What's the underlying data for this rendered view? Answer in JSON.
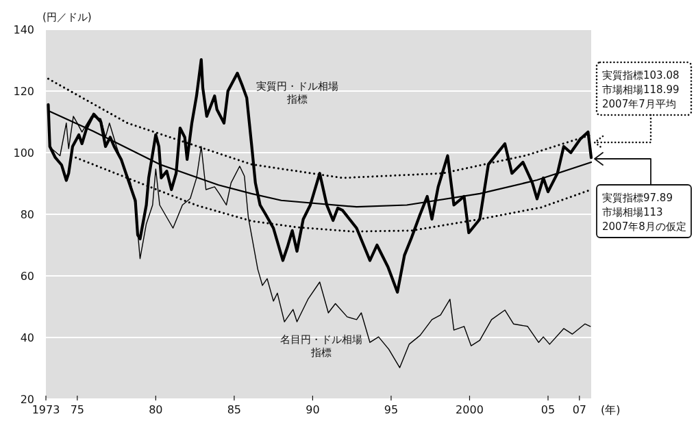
{
  "chart_data": {
    "type": "line",
    "xlabel": "(年)",
    "ylabel": "(円／ドル)",
    "xlim": [
      1973,
      2007.75
    ],
    "ylim": [
      20,
      140
    ],
    "xticks": [
      {
        "value": 1973,
        "label": "1973"
      },
      {
        "value": 1975,
        "label": "75"
      },
      {
        "value": 1980,
        "label": "80"
      },
      {
        "value": 1985,
        "label": "85"
      },
      {
        "value": 1990,
        "label": "90"
      },
      {
        "value": 1995,
        "label": "95"
      },
      2000,
      {
        "value": 2005,
        "label": "05"
      },
      {
        "value": 2007,
        "label": "07"
      }
    ],
    "yticks": [
      20,
      40,
      60,
      80,
      100,
      120,
      140
    ],
    "grid": "y",
    "series": [
      {
        "name": "実質円・ドル相場指標",
        "color": "#000000",
        "x": [
          1973.15,
          1973.25,
          1973.6,
          1974.0,
          1974.3,
          1974.45,
          1974.7,
          1975.1,
          1975.3,
          1975.6,
          1976.05,
          1976.5,
          1976.8,
          1977.1,
          1977.35,
          1977.8,
          1978.2,
          1978.7,
          1978.85,
          1979.0,
          1979.4,
          1979.55,
          1980.0,
          1980.2,
          1980.35,
          1980.7,
          1981.0,
          1981.3,
          1981.55,
          1981.85,
          1982.0,
          1982.3,
          1982.6,
          1982.9,
          1983.0,
          1983.25,
          1983.75,
          1983.9,
          1984.35,
          1984.6,
          1985.2,
          1985.5,
          1985.8,
          1986.1,
          1986.35,
          1986.65,
          1987.0,
          1987.5,
          1988.1,
          1988.4,
          1988.7,
          1989.0,
          1989.4,
          1989.85,
          1990.45,
          1990.9,
          1991.3,
          1991.6,
          1991.9,
          1992.8,
          1993.65,
          1994.1,
          1994.8,
          1995.4,
          1995.85,
          1996.3,
          1996.85,
          1997.3,
          1997.6,
          1998.0,
          1998.6,
          1999.0,
          1999.65,
          1999.95,
          2000.65,
          2001.2,
          2002.25,
          2002.7,
          2003.4,
          2004.0,
          2004.3,
          2004.7,
          2005.0,
          2005.6,
          2006.0,
          2006.45,
          2007.05,
          2007.55,
          2007.75
        ],
        "values": [
          115.6,
          102,
          98.4,
          96,
          91,
          93.3,
          102,
          105.8,
          102.9,
          108,
          112.5,
          110,
          102,
          105,
          102,
          97.8,
          91.8,
          84.4,
          73.3,
          72,
          83,
          91.8,
          105.8,
          102,
          91.8,
          94,
          88,
          93.3,
          108,
          105,
          97.8,
          109.6,
          118.4,
          130.2,
          121,
          111.8,
          118.4,
          114,
          109.6,
          120,
          125.8,
          122,
          117.8,
          103,
          90.2,
          83,
          80,
          75.5,
          65,
          69.5,
          74.7,
          68,
          78.4,
          83,
          93.3,
          83,
          78,
          82,
          81.3,
          75.5,
          65,
          70,
          62.9,
          54.7,
          66.7,
          72.4,
          80,
          85.8,
          78.4,
          88.9,
          99,
          83,
          85.8,
          74,
          78.4,
          96.2,
          102.9,
          93.3,
          96.9,
          90.2,
          85,
          91.8,
          87.3,
          93.3,
          102,
          100,
          104.4,
          106.7,
          98.4
        ]
      },
      {
        "name": "名目円・ドル相場指標",
        "color": "#000000",
        "x": [
          1973.2,
          1973.9,
          1974.3,
          1974.45,
          1974.75,
          1975.0,
          1975.3,
          1975.9,
          1976.5,
          1976.8,
          1977.05,
          1977.5,
          1977.9,
          1978.4,
          1978.7,
          1979.0,
          1979.4,
          1979.8,
          1980.0,
          1980.25,
          1981.1,
          1981.7,
          1982.2,
          1982.6,
          1982.9,
          1983.2,
          1983.75,
          1984.05,
          1984.5,
          1984.8,
          1985.35,
          1985.65,
          1985.9,
          1986.5,
          1986.8,
          1987.1,
          1987.5,
          1987.75,
          1988.2,
          1988.75,
          1989.0,
          1989.7,
          1990.45,
          1991.0,
          1991.45,
          1992.2,
          1992.8,
          1993.1,
          1993.65,
          1994.2,
          1994.85,
          1995.55,
          1996.15,
          1996.85,
          1997.6,
          1998.15,
          1998.75,
          1999.0,
          1999.65,
          2000.1,
          2000.65,
          2001.4,
          2002.25,
          2002.8,
          2003.7,
          2004.4,
          2004.7,
          2005.1,
          2006.0,
          2006.55,
          2007.35,
          2007.7
        ],
        "values": [
          102,
          99,
          109.6,
          101.3,
          111.8,
          109.6,
          106.7,
          111.8,
          111,
          105,
          109.6,
          102,
          96,
          90.2,
          83,
          65.6,
          76.9,
          83,
          94.7,
          83,
          75.5,
          83,
          85.1,
          91.8,
          102,
          88,
          88.9,
          86.7,
          83,
          90.2,
          95.6,
          92.4,
          79,
          62.2,
          56.9,
          59.1,
          51.8,
          54.4,
          45.1,
          49.1,
          45.1,
          52.4,
          58,
          48,
          51,
          46.7,
          45.8,
          48,
          38.4,
          40.2,
          36.2,
          30.2,
          37.8,
          40.7,
          45.8,
          47.3,
          52.4,
          42.4,
          43.6,
          37.3,
          39.1,
          45.8,
          48.9,
          44.4,
          43.6,
          38.4,
          40.2,
          37.8,
          42.9,
          41.1,
          44.4,
          43.6
        ]
      },
      {
        "color": "#000000",
        "x": [
          1973.15,
          1976,
          1980.25,
          1984,
          1986.1,
          1988,
          1992.8,
          1996,
          2000.65,
          2004.3,
          2007.75
        ],
        "values": [
          113.6,
          107,
          96.2,
          89.5,
          86.7,
          84.5,
          82.4,
          83,
          86.7,
          91.1,
          96.9
        ]
      },
      {
        "color": "#000000",
        "line_style": "dotted",
        "x": [
          1973.15,
          1978.2,
          1986.1,
          1991.9,
          1998.3,
          2003.6,
          2007.75
        ],
        "values": [
          124,
          109.6,
          96.2,
          91.8,
          93.3,
          99.1,
          105.8
        ]
      },
      {
        "color": "#000000",
        "line_style": "dotted",
        "x": [
          1974.9,
          1982.6,
          1986.1,
          1989.0,
          1992.6,
          1996.3,
          2000.65,
          2004.55,
          2007.75
        ],
        "values": [
          98.4,
          82.9,
          77.8,
          75.8,
          74.4,
          74.7,
          78.4,
          82.2,
          88
        ]
      }
    ],
    "annotations": [
      "実質指標103.08\n市場相場118.99\n2007年7月平均",
      "実質指標97.89\n市場相場113\n2007年8月の仮定"
    ]
  }
}
